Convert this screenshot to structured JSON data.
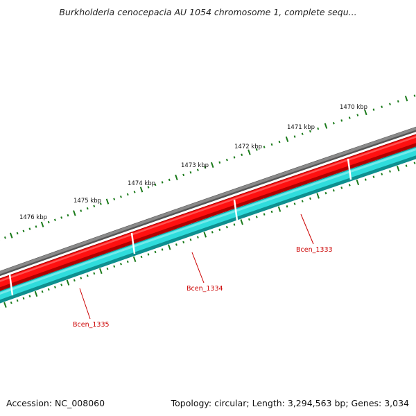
{
  "header": {
    "title": "Burkholderia cenocepacia AU 1054 chromosome 1, complete sequ..."
  },
  "footer": {
    "accession": "Accession: NC_008060",
    "summary": "Topology: circular; Length: 3,294,563 bp; Genes: 3,034"
  },
  "map": {
    "tick_labels": [
      "1470 kbp",
      "1471 kbp",
      "1472 kbp",
      "1473 kbp",
      "1474 kbp",
      "1475 kbp",
      "1476 kbp"
    ],
    "genes": [
      {
        "label": "Bcen_1333"
      },
      {
        "label": "Bcen_1334"
      },
      {
        "label": "Bcen_1335"
      }
    ]
  },
  "colors": {
    "backbone": "#7a7a7a",
    "forward_feature": "#ff0000",
    "forward_feature_dark": "#b80000",
    "reverse_feature": "#22d3d3",
    "reverse_feature_dark": "#0e8f8f",
    "tick": "#1a7a1a",
    "gene_label": "#cc0000"
  }
}
